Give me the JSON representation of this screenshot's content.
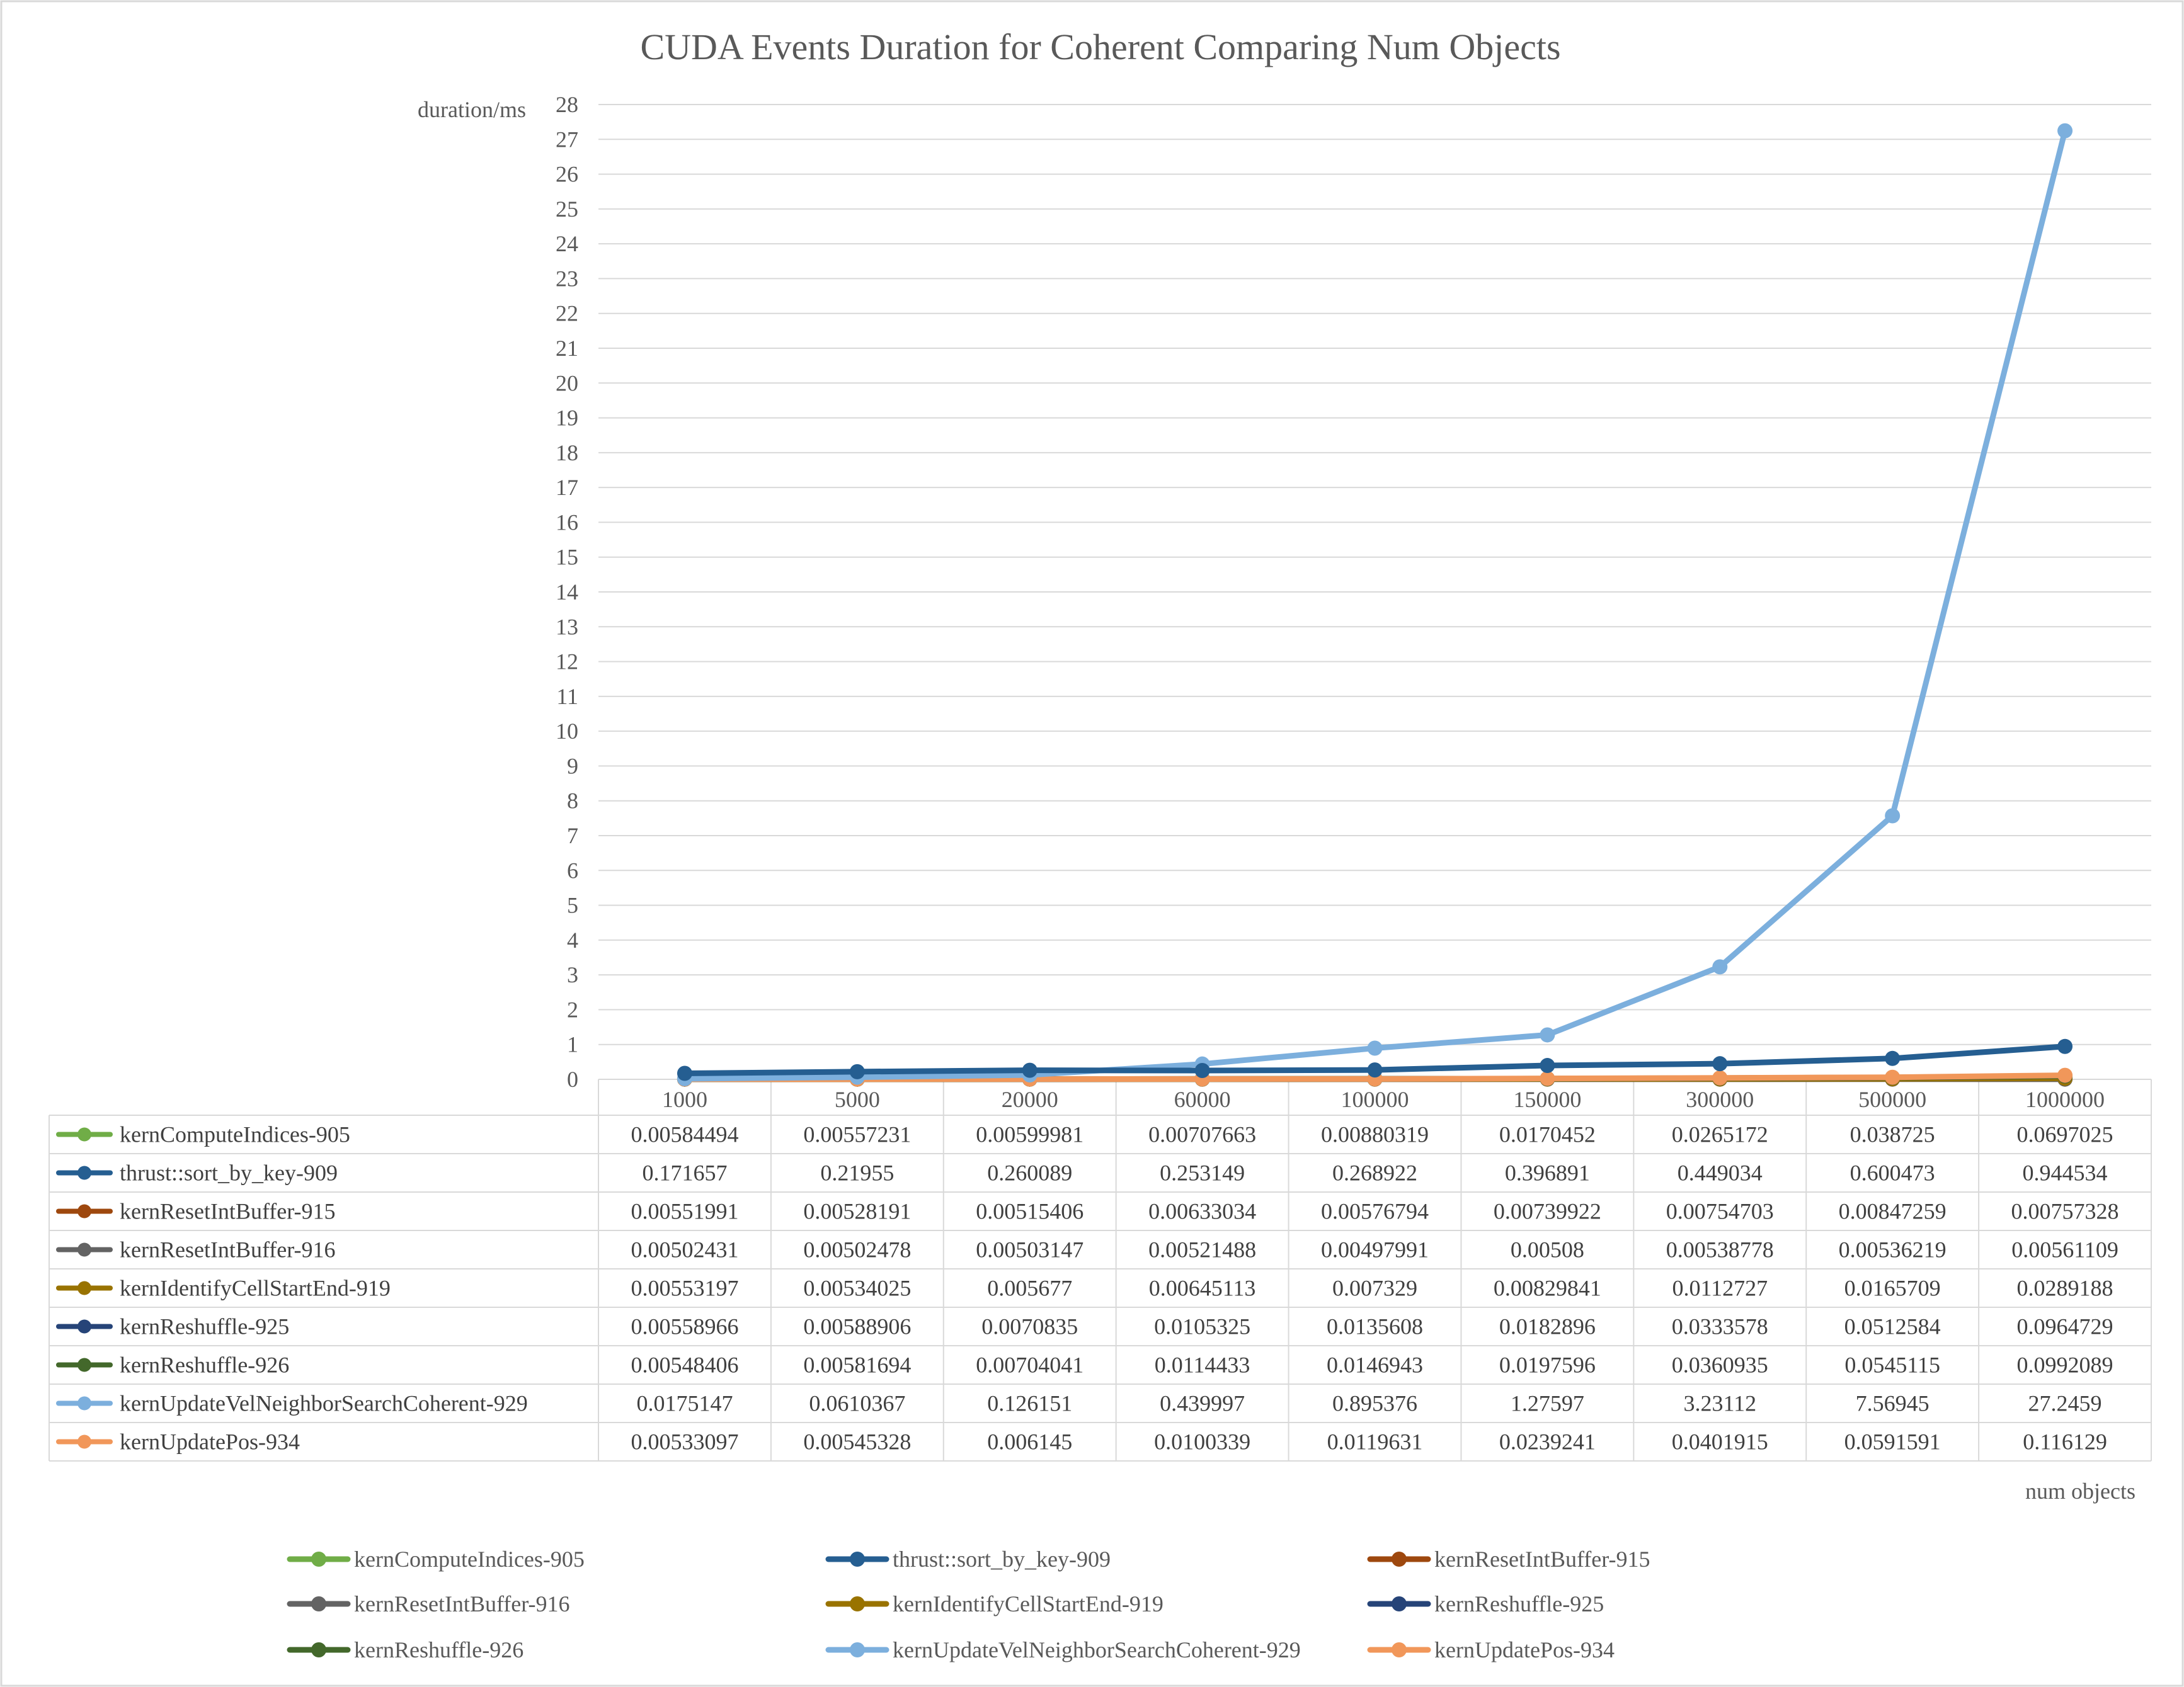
{
  "chart_data": {
    "type": "line",
    "title": "CUDA Events Duration for Coherent Comparing Num Objects",
    "ylabel": "duration/ms",
    "xlabel": "num objects",
    "ylim": [
      0,
      28
    ],
    "ytick_step": 1,
    "grid": true,
    "legend_position": "bottom",
    "data_table": true,
    "categories": [
      "1000",
      "5000",
      "20000",
      "60000",
      "100000",
      "150000",
      "300000",
      "500000",
      "1000000"
    ],
    "series": [
      {
        "name": "kernComputeIndices-905",
        "color": "#70ad47",
        "labels": [
          "0.00584494",
          "0.00557231",
          "0.00599981",
          "0.00707663",
          "0.00880319",
          "0.0170452",
          "0.0265172",
          "0.038725",
          "0.0697025"
        ],
        "values": [
          0.00584494,
          0.00557231,
          0.00599981,
          0.00707663,
          0.00880319,
          0.0170452,
          0.0265172,
          0.038725,
          0.0697025
        ]
      },
      {
        "name": "thrust::sort_by_key-909",
        "color": "#255e91",
        "labels": [
          "0.171657",
          "0.21955",
          "0.260089",
          "0.253149",
          "0.268922",
          "0.396891",
          "0.449034",
          "0.600473",
          "0.944534"
        ],
        "values": [
          0.171657,
          0.21955,
          0.260089,
          0.253149,
          0.268922,
          0.396891,
          0.449034,
          0.600473,
          0.944534
        ]
      },
      {
        "name": "kernResetIntBuffer-915",
        "color": "#9e480e",
        "labels": [
          "0.00551991",
          "0.00528191",
          "0.00515406",
          "0.00633034",
          "0.00576794",
          "0.00739922",
          "0.00754703",
          "0.00847259",
          "0.00757328"
        ],
        "values": [
          0.00551991,
          0.00528191,
          0.00515406,
          0.00633034,
          0.00576794,
          0.00739922,
          0.00754703,
          0.00847259,
          0.00757328
        ]
      },
      {
        "name": "kernResetIntBuffer-916",
        "color": "#636363",
        "labels": [
          "0.00502431",
          "0.00502478",
          "0.00503147",
          "0.00521488",
          "0.00497991",
          "0.00508",
          "0.00538778",
          "0.00536219",
          "0.00561109"
        ],
        "values": [
          0.00502431,
          0.00502478,
          0.00503147,
          0.00521488,
          0.00497991,
          0.00508,
          0.00538778,
          0.00536219,
          0.00561109
        ]
      },
      {
        "name": "kernIdentifyCellStartEnd-919",
        "color": "#997300",
        "labels": [
          "0.00553197",
          "0.00534025",
          "0.005677",
          "0.00645113",
          "0.007329",
          "0.00829841",
          "0.0112727",
          "0.0165709",
          "0.0289188"
        ],
        "values": [
          0.00553197,
          0.00534025,
          0.005677,
          0.00645113,
          0.007329,
          0.00829841,
          0.0112727,
          0.0165709,
          0.0289188
        ]
      },
      {
        "name": "kernReshuffle-925",
        "color": "#264478",
        "labels": [
          "0.00558966",
          "0.00588906",
          "0.0070835",
          "0.0105325",
          "0.0135608",
          "0.0182896",
          "0.0333578",
          "0.0512584",
          "0.0964729"
        ],
        "values": [
          0.00558966,
          0.00588906,
          0.0070835,
          0.0105325,
          0.0135608,
          0.0182896,
          0.0333578,
          0.0512584,
          0.0964729
        ]
      },
      {
        "name": "kernReshuffle-926",
        "color": "#43682b",
        "labels": [
          "0.00548406",
          "0.00581694",
          "0.00704041",
          "0.0114433",
          "0.0146943",
          "0.0197596",
          "0.0360935",
          "0.0545115",
          "0.0992089"
        ],
        "values": [
          0.00548406,
          0.00581694,
          0.00704041,
          0.0114433,
          0.0146943,
          0.0197596,
          0.0360935,
          0.0545115,
          0.0992089
        ]
      },
      {
        "name": "kernUpdateVelNeighborSearchCoherent-929",
        "color": "#7cafdd",
        "labels": [
          "0.0175147",
          "0.0610367",
          "0.126151",
          "0.439997",
          "0.895376",
          "1.27597",
          "3.23112",
          "7.56945",
          "27.2459"
        ],
        "values": [
          0.0175147,
          0.0610367,
          0.126151,
          0.439997,
          0.895376,
          1.27597,
          3.23112,
          7.56945,
          27.2459
        ]
      },
      {
        "name": "kernUpdatePos-934",
        "color": "#f1975a",
        "labels": [
          "0.00533097",
          "0.00545328",
          "0.006145",
          "0.0100339",
          "0.0119631",
          "0.0239241",
          "0.0401915",
          "0.0591591",
          "0.116129"
        ],
        "values": [
          0.00533097,
          0.00545328,
          0.006145,
          0.0100339,
          0.0119631,
          0.0239241,
          0.0401915,
          0.0591591,
          0.116129
        ]
      }
    ]
  }
}
